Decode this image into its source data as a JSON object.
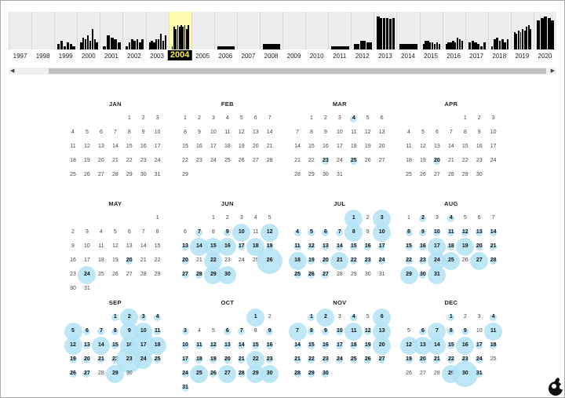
{
  "histogram": {
    "years": [
      "1997",
      "1998",
      "1999",
      "2000",
      "2001",
      "2002",
      "2003",
      "2004",
      "2005",
      "2006",
      "2007",
      "2008",
      "2009",
      "2010",
      "2011",
      "2012",
      "2013",
      "2014",
      "2015",
      "2016",
      "2017",
      "2018",
      "2019",
      "2020"
    ],
    "selected_year": "2004",
    "activity": {
      "1999": [
        0.15,
        0.25,
        0.1,
        0.2,
        0.15,
        0.1
      ],
      "2000": [
        0.2,
        0.35,
        0.3,
        0.4,
        0.25,
        0.6,
        0.3,
        0.2
      ],
      "2001": [
        0.1,
        0.4,
        0.35,
        0.3,
        0.2
      ],
      "2002": [
        0.1,
        0.2,
        0.3,
        0.25,
        0.3,
        0.2,
        0.3
      ],
      "2003": [
        0.2,
        0.25,
        0.2,
        0.3,
        0.3,
        0.45,
        0.25,
        0.4
      ],
      "2004": [
        0.1,
        0.65,
        0.6,
        0.7,
        0.65,
        0.7,
        0.65,
        0.7,
        0.6,
        0.7
      ],
      "2006": [
        0.1
      ],
      "2008": [
        0.15
      ],
      "2011": [
        0.1
      ],
      "2012": [
        0.15,
        0.25,
        0.2
      ],
      "2013": [
        0.95,
        0.9,
        0.92,
        0.9,
        0.88,
        0.9
      ],
      "2014": [
        0.15
      ],
      "2015": [
        0.15,
        0.25,
        0.25,
        0.2,
        0.2,
        0.15,
        0.2,
        0.15
      ],
      "2016": [
        0.15,
        0.2,
        0.2,
        0.25,
        0.2,
        0.35,
        0.3,
        0.25
      ],
      "2017": [
        0.2,
        0.25,
        0.2,
        0.15,
        0.1,
        0.2
      ],
      "2018": [
        0.1,
        0.3,
        0.35,
        0.25,
        0.3,
        0.2,
        0.3
      ],
      "2019": [
        0.5,
        0.45,
        0.55,
        0.5,
        0.6,
        0.55,
        0.65,
        0.7,
        0.6
      ],
      "2020": [
        0.85,
        0.9,
        0.95,
        0.9,
        0.85
      ]
    }
  },
  "scrollbar": {
    "left_arrow": "◀",
    "right_arrow": "▶"
  },
  "calendar": {
    "year": "2004",
    "months": [
      {
        "name": "JAN",
        "start": 4,
        "days": 31,
        "captures": {}
      },
      {
        "name": "FEB",
        "start": 0,
        "days": 29,
        "captures": {}
      },
      {
        "name": "MAR",
        "start": 1,
        "days": 31,
        "captures": {
          "4": 1,
          "23": 1,
          "25": 1
        }
      },
      {
        "name": "APR",
        "start": 4,
        "days": 30,
        "captures": {
          "20": 1
        }
      },
      {
        "name": "MAY",
        "start": 6,
        "days": 31,
        "captures": {
          "20": 1,
          "24": 2
        }
      },
      {
        "name": "JUN",
        "start": 2,
        "days": 30,
        "captures": {
          "7": 1,
          "9": 1,
          "10": 2,
          "12": 2,
          "13": 1,
          "14": 2,
          "15": 2,
          "16": 2,
          "17": 1,
          "18": 2,
          "19": 1,
          "20": 1,
          "22": 2,
          "26": 3,
          "27": 1,
          "28": 1,
          "29": 2,
          "30": 2
        }
      },
      {
        "name": "JUL",
        "start": 4,
        "days": 31,
        "captures": {
          "1": 2,
          "3": 2,
          "4": 1,
          "5": 1,
          "6": 1,
          "7": 1,
          "8": 2,
          "10": 2,
          "11": 1,
          "12": 1,
          "13": 1,
          "14": 1,
          "15": 1,
          "16": 1,
          "17": 1,
          "18": 2,
          "19": 1,
          "20": 1,
          "21": 2,
          "22": 1,
          "23": 1,
          "24": 1,
          "25": 1,
          "26": 1,
          "27": 1
        }
      },
      {
        "name": "AUG",
        "start": 0,
        "days": 31,
        "captures": {
          "2": 1,
          "4": 1,
          "8": 1,
          "9": 1,
          "10": 1,
          "11": 1,
          "12": 1,
          "13": 1,
          "14": 1,
          "15": 1,
          "16": 1,
          "17": 2,
          "18": 1,
          "19": 2,
          "20": 1,
          "21": 1,
          "22": 1,
          "23": 1,
          "24": 2,
          "25": 2,
          "27": 2,
          "28": 1,
          "29": 2,
          "30": 1,
          "31": 2
        }
      },
      {
        "name": "SEP",
        "start": 3,
        "days": 30,
        "captures": {
          "1": 1,
          "2": 2,
          "3": 1,
          "4": 1,
          "5": 2,
          "6": 1,
          "7": 1,
          "8": 1,
          "9": 2,
          "10": 2,
          "11": 1,
          "12": 2,
          "13": 1,
          "14": 2,
          "15": 1,
          "16": 2,
          "17": 3,
          "18": 2,
          "19": 1,
          "20": 1,
          "21": 1,
          "22": 1,
          "23": 3,
          "24": 2,
          "25": 1,
          "26": 1,
          "27": 1,
          "29": 2
        }
      },
      {
        "name": "OCT",
        "start": 5,
        "days": 31,
        "captures": {
          "1": 2,
          "3": 1,
          "6": 1,
          "7": 1,
          "9": 1,
          "10": 1,
          "11": 1,
          "12": 1,
          "13": 1,
          "14": 1,
          "15": 1,
          "16": 1,
          "17": 1,
          "18": 1,
          "19": 1,
          "20": 1,
          "21": 1,
          "22": 2,
          "23": 1,
          "24": 1,
          "25": 2,
          "26": 1,
          "27": 2,
          "28": 1,
          "29": 2,
          "30": 2,
          "31": 1
        }
      },
      {
        "name": "NOV",
        "start": 1,
        "days": 30,
        "captures": {
          "1": 1,
          "2": 2,
          "4": 1,
          "6": 2,
          "7": 2,
          "8": 1,
          "9": 1,
          "10": 1,
          "11": 2,
          "12": 1,
          "13": 2,
          "14": 1,
          "15": 1,
          "16": 1,
          "17": 1,
          "18": 1,
          "19": 1,
          "20": 2,
          "21": 1,
          "22": 1,
          "23": 1,
          "24": 1,
          "25": 1,
          "26": 1,
          "27": 1,
          "28": 1,
          "29": 1,
          "30": 1
        }
      },
      {
        "name": "DEC",
        "start": 3,
        "days": 31,
        "captures": {
          "1": 1,
          "4": 1,
          "6": 1,
          "7": 2,
          "8": 1,
          "9": 1,
          "11": 2,
          "12": 2,
          "13": 2,
          "14": 2,
          "15": 1,
          "16": 2,
          "17": 1,
          "18": 1,
          "19": 1,
          "20": 1,
          "21": 1,
          "22": 1,
          "23": 1,
          "24": 1,
          "29": 2,
          "30": 3,
          "31": 1
        }
      }
    ]
  },
  "footer": {
    "logo_icon": "apple-logo-icon"
  }
}
